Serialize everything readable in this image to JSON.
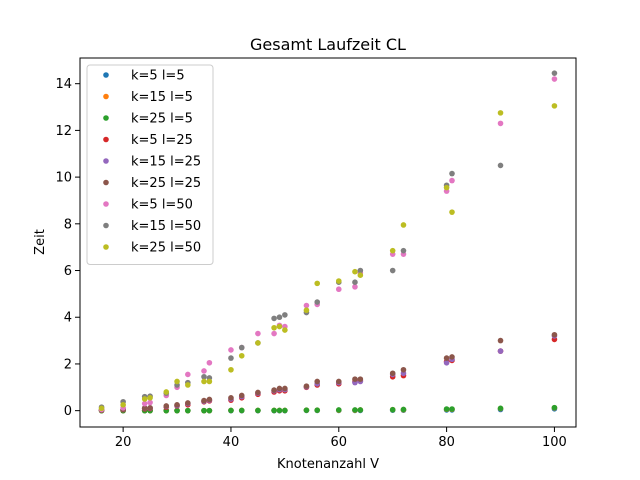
{
  "chart_data": {
    "type": "scatter",
    "title": "Gesamt Laufzeit CL",
    "xlabel": "Knotenanzahl V",
    "ylabel": "Zeit",
    "xlim": [
      12,
      104
    ],
    "ylim": [
      -0.7,
      15.1
    ],
    "xticks": [
      20,
      40,
      60,
      80,
      100
    ],
    "yticks": [
      0,
      2,
      4,
      6,
      8,
      10,
      12,
      14
    ],
    "grid": false,
    "legend_position": "top-left",
    "x": [
      16,
      20,
      24,
      25,
      28,
      30,
      32,
      35,
      36,
      40,
      42,
      45,
      48,
      49,
      50,
      54,
      56,
      60,
      63,
      64,
      70,
      72,
      80,
      81,
      90,
      100
    ],
    "series": [
      {
        "name": "k=5 l=5",
        "color": "#1f77b4",
        "values": [
          0.0,
          0.0,
          0.0,
          0.0,
          0.0,
          0.0,
          0.0,
          0.0,
          0.0,
          0.0,
          0.0,
          0.0,
          0.0,
          0.0,
          0.0,
          0.01,
          0.01,
          0.01,
          0.01,
          0.01,
          0.02,
          0.02,
          0.03,
          0.03,
          0.05,
          0.08
        ]
      },
      {
        "name": "k=15 l=5",
        "color": "#ff7f0e",
        "values": [
          0.0,
          0.0,
          0.0,
          0.0,
          0.0,
          0.0,
          0.0,
          0.0,
          0.0,
          0.01,
          0.01,
          0.01,
          0.01,
          0.01,
          0.01,
          0.02,
          0.02,
          0.02,
          0.02,
          0.03,
          0.04,
          0.04,
          0.06,
          0.06,
          0.09,
          0.12
        ]
      },
      {
        "name": "k=25 l=5",
        "color": "#2ca02c",
        "values": [
          0.0,
          0.0,
          0.0,
          0.0,
          0.0,
          0.0,
          0.0,
          0.0,
          0.0,
          0.01,
          0.01,
          0.01,
          0.01,
          0.01,
          0.01,
          0.02,
          0.02,
          0.03,
          0.03,
          0.03,
          0.04,
          0.05,
          0.07,
          0.07,
          0.1,
          0.13
        ]
      },
      {
        "name": "k=5 l=25",
        "color": "#d62728",
        "values": [
          0.02,
          0.04,
          0.08,
          0.09,
          0.15,
          0.2,
          0.25,
          0.38,
          0.42,
          0.45,
          0.55,
          0.7,
          0.8,
          0.85,
          0.85,
          1.0,
          1.1,
          1.15,
          1.25,
          1.28,
          1.45,
          1.5,
          2.1,
          2.15,
          2.55,
          3.05
        ]
      },
      {
        "name": "k=15 l=25",
        "color": "#9467bd",
        "values": [
          0.03,
          0.05,
          0.1,
          0.11,
          0.18,
          0.22,
          0.3,
          0.4,
          0.45,
          0.5,
          0.6,
          0.75,
          0.85,
          0.9,
          0.9,
          1.02,
          1.15,
          1.2,
          1.2,
          1.25,
          1.55,
          1.6,
          2.05,
          2.2,
          2.55,
          3.2
        ]
      },
      {
        "name": "k=25 l=25",
        "color": "#8c564b",
        "values": [
          0.03,
          0.05,
          0.11,
          0.12,
          0.2,
          0.25,
          0.33,
          0.43,
          0.48,
          0.55,
          0.65,
          0.78,
          0.88,
          0.95,
          0.95,
          1.05,
          1.25,
          1.25,
          1.35,
          1.35,
          1.6,
          1.75,
          2.25,
          2.3,
          3.0,
          3.25
        ]
      },
      {
        "name": "k=5 l=50",
        "color": "#e377c2",
        "values": [
          0.05,
          0.12,
          0.3,
          0.35,
          0.65,
          1.0,
          1.55,
          1.7,
          2.05,
          2.6,
          2.7,
          3.3,
          3.3,
          3.65,
          3.6,
          4.5,
          4.55,
          5.2,
          5.3,
          5.9,
          6.7,
          6.7,
          9.4,
          9.85,
          12.3,
          14.2
        ]
      },
      {
        "name": "k=15 l=50",
        "color": "#7f7f7f",
        "values": [
          0.15,
          0.38,
          0.6,
          0.62,
          0.75,
          1.1,
          1.2,
          1.45,
          1.4,
          2.25,
          2.7,
          2.9,
          3.95,
          4.0,
          4.1,
          4.2,
          4.65,
          5.5,
          5.5,
          6.0,
          6.0,
          6.85,
          9.65,
          10.15,
          10.5,
          14.45
        ]
      },
      {
        "name": "k=25 l=50",
        "color": "#bcbd22",
        "values": [
          0.1,
          0.25,
          0.5,
          0.55,
          0.8,
          1.25,
          1.1,
          1.25,
          1.25,
          1.75,
          2.35,
          2.9,
          3.55,
          3.6,
          3.45,
          4.3,
          5.45,
          5.55,
          5.95,
          5.8,
          6.85,
          7.95,
          9.55,
          8.5,
          12.75,
          13.05
        ]
      }
    ]
  }
}
